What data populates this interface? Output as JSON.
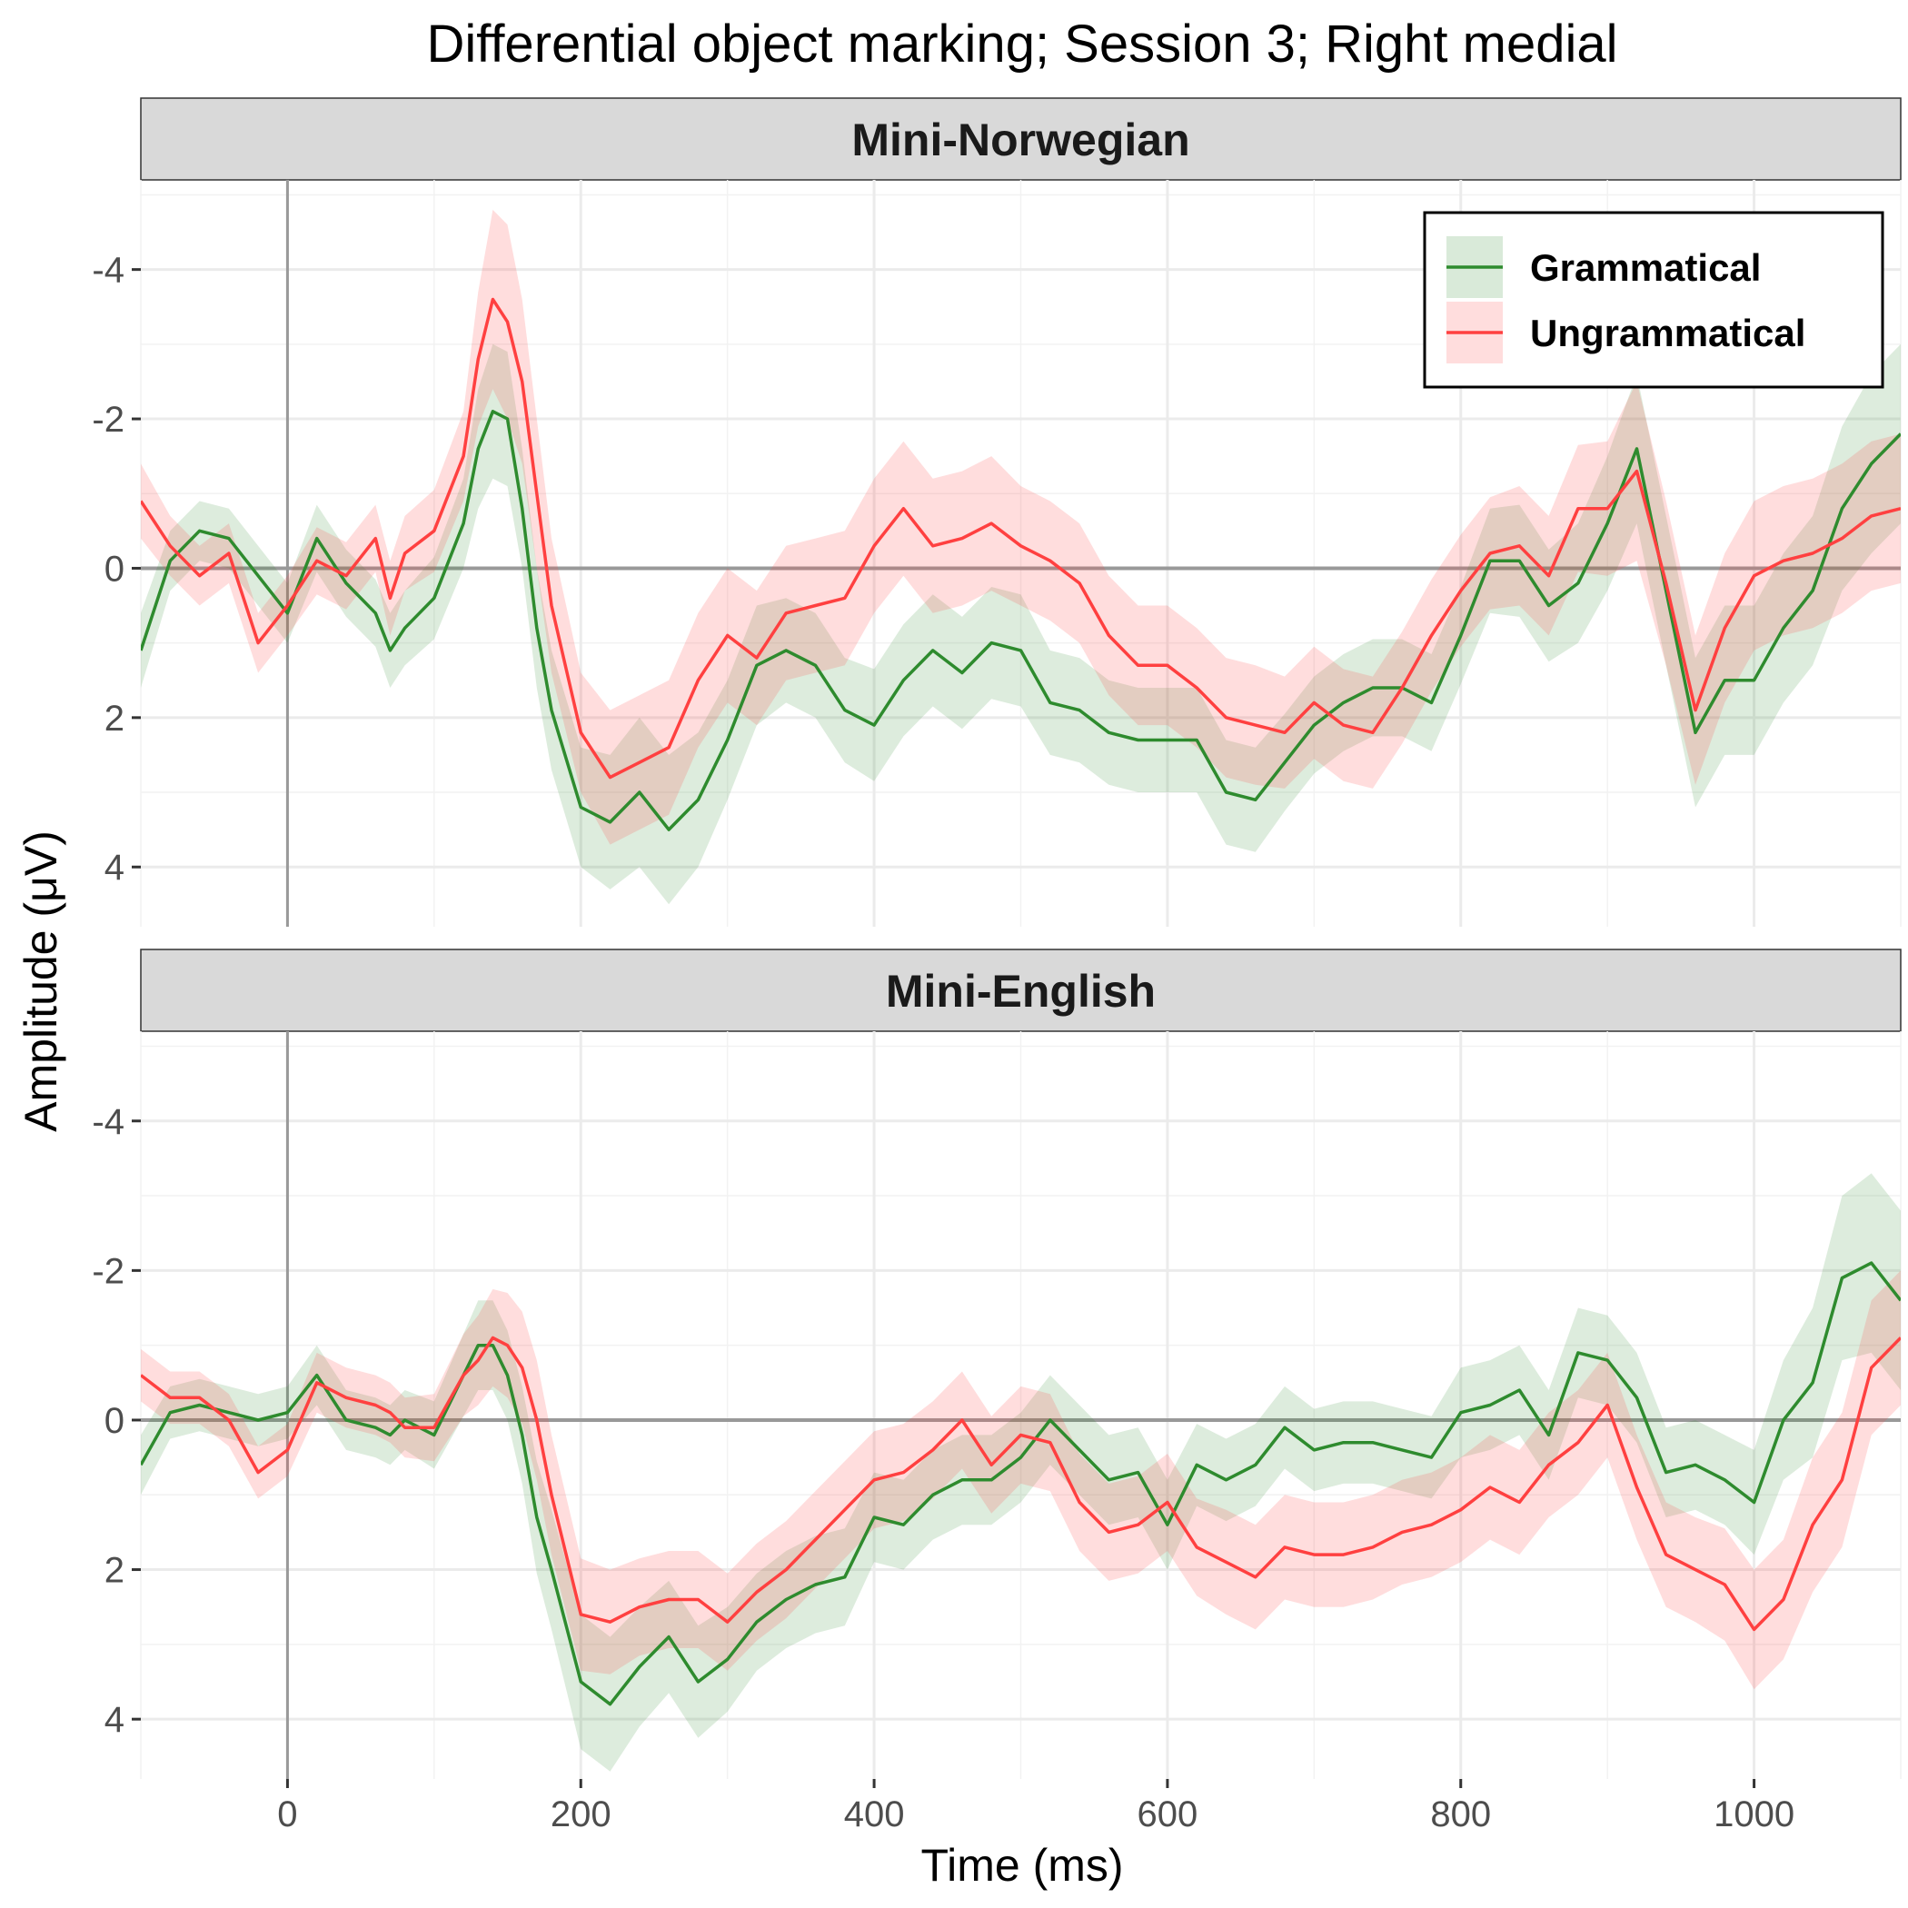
{
  "chart_data": {
    "type": "line",
    "title": "Differential object marking; Session 3; Right medial",
    "xlabel": "Time (ms)",
    "ylabel": "Amplitude (μV)",
    "y_reversed": true,
    "xlim": [
      -100,
      1100
    ],
    "ylim": [
      -5.2,
      4.8
    ],
    "x_ticks": [
      0,
      200,
      400,
      600,
      800,
      1000
    ],
    "y_ticks": [
      -4,
      -2,
      0,
      2,
      4
    ],
    "y_tick_labels": [
      "-4",
      "-2",
      "0",
      "2",
      "4"
    ],
    "grid": true,
    "ribbons": "confidence band around each series",
    "legend": {
      "position": "top-right",
      "entries": [
        "Grammatical",
        "Ungrammatical"
      ]
    },
    "colors": {
      "Grammatical": "#2e8b2e",
      "Ungrammatical": "#ff4040"
    },
    "panels": [
      {
        "label": "Mini-Norwegian",
        "series": [
          {
            "name": "Grammatical",
            "x": [
              -100,
              -80,
              -60,
              -40,
              -20,
              0,
              20,
              40,
              60,
              70,
              80,
              100,
              120,
              130,
              140,
              150,
              160,
              170,
              180,
              200,
              220,
              240,
              260,
              280,
              300,
              320,
              340,
              360,
              380,
              400,
              420,
              440,
              460,
              480,
              500,
              520,
              540,
              560,
              580,
              600,
              620,
              640,
              660,
              680,
              700,
              720,
              740,
              760,
              780,
              800,
              820,
              840,
              860,
              880,
              900,
              920,
              940,
              960,
              980,
              1000,
              1020,
              1040,
              1060,
              1080,
              1100
            ],
            "y": [
              1.1,
              -0.1,
              -0.5,
              -0.4,
              0.1,
              0.6,
              -0.4,
              0.2,
              0.6,
              1.1,
              0.8,
              0.4,
              -0.6,
              -1.6,
              -2.1,
              -2.0,
              -0.8,
              0.8,
              1.9,
              3.2,
              3.4,
              3.0,
              3.5,
              3.1,
              2.3,
              1.3,
              1.1,
              1.3,
              1.9,
              2.1,
              1.5,
              1.1,
              1.4,
              1.0,
              1.1,
              1.8,
              1.9,
              2.2,
              2.3,
              2.3,
              2.3,
              3.0,
              3.1,
              2.6,
              2.1,
              1.8,
              1.6,
              1.6,
              1.8,
              0.9,
              -0.1,
              -0.1,
              0.5,
              0.2,
              -0.6,
              -1.6,
              0.3,
              2.2,
              1.5,
              1.5,
              0.8,
              0.3,
              -0.8,
              -1.4,
              -1.8
            ],
            "band_halfwidth": [
              0.5,
              0.4,
              0.4,
              0.4,
              0.4,
              0.4,
              0.45,
              0.45,
              0.45,
              0.5,
              0.5,
              0.55,
              0.6,
              0.8,
              0.9,
              0.9,
              0.8,
              0.8,
              0.8,
              0.8,
              0.9,
              1.0,
              1.0,
              0.9,
              0.8,
              0.8,
              0.7,
              0.7,
              0.7,
              0.75,
              0.75,
              0.75,
              0.75,
              0.75,
              0.75,
              0.7,
              0.7,
              0.7,
              0.7,
              0.7,
              0.7,
              0.7,
              0.7,
              0.65,
              0.65,
              0.65,
              0.65,
              0.65,
              0.65,
              0.65,
              0.7,
              0.75,
              0.75,
              0.8,
              0.9,
              1.0,
              1.0,
              1.0,
              1.0,
              1.0,
              1.0,
              1.0,
              1.1,
              1.2,
              1.2
            ]
          },
          {
            "name": "Ungrammatical",
            "x": [
              -100,
              -80,
              -60,
              -40,
              -20,
              0,
              20,
              40,
              60,
              70,
              80,
              100,
              120,
              130,
              140,
              150,
              160,
              170,
              180,
              200,
              220,
              240,
              260,
              280,
              300,
              320,
              340,
              360,
              380,
              400,
              420,
              440,
              460,
              480,
              500,
              520,
              540,
              560,
              580,
              600,
              620,
              640,
              660,
              680,
              700,
              720,
              740,
              760,
              780,
              800,
              820,
              840,
              860,
              880,
              900,
              920,
              940,
              960,
              980,
              1000,
              1020,
              1040,
              1060,
              1080,
              1100
            ],
            "y": [
              -0.9,
              -0.3,
              0.1,
              -0.2,
              1.0,
              0.5,
              -0.1,
              0.1,
              -0.4,
              0.4,
              -0.2,
              -0.5,
              -1.5,
              -2.8,
              -3.6,
              -3.3,
              -2.5,
              -1.0,
              0.5,
              2.2,
              2.8,
              2.6,
              2.4,
              1.5,
              0.9,
              1.2,
              0.6,
              0.5,
              0.4,
              -0.3,
              -0.8,
              -0.3,
              -0.4,
              -0.6,
              -0.3,
              -0.1,
              0.2,
              0.9,
              1.3,
              1.3,
              1.6,
              2.0,
              2.1,
              2.2,
              1.8,
              2.1,
              2.2,
              1.6,
              0.9,
              0.3,
              -0.2,
              -0.3,
              0.1,
              -0.8,
              -0.8,
              -1.3,
              0.2,
              1.9,
              0.8,
              0.1,
              -0.1,
              -0.2,
              -0.4,
              -0.7,
              -0.8
            ],
            "band_halfwidth": [
              0.5,
              0.4,
              0.4,
              0.4,
              0.4,
              0.4,
              0.45,
              0.45,
              0.45,
              0.5,
              0.5,
              0.55,
              0.6,
              0.9,
              1.2,
              1.3,
              1.1,
              1.0,
              0.9,
              0.8,
              0.9,
              0.9,
              0.9,
              0.9,
              0.9,
              0.9,
              0.9,
              0.9,
              0.9,
              0.9,
              0.9,
              0.9,
              0.9,
              0.9,
              0.8,
              0.8,
              0.8,
              0.8,
              0.8,
              0.8,
              0.8,
              0.8,
              0.8,
              0.75,
              0.75,
              0.75,
              0.75,
              0.75,
              0.75,
              0.75,
              0.75,
              0.8,
              0.8,
              0.85,
              0.9,
              1.2,
              1.1,
              1.0,
              1.0,
              1.0,
              1.0,
              1.0,
              1.0,
              1.0,
              1.0
            ]
          }
        ]
      },
      {
        "label": "Mini-English",
        "series": [
          {
            "name": "Grammatical",
            "x": [
              -100,
              -80,
              -60,
              -40,
              -20,
              0,
              20,
              40,
              60,
              70,
              80,
              100,
              120,
              130,
              140,
              150,
              160,
              170,
              180,
              200,
              220,
              240,
              260,
              280,
              300,
              320,
              340,
              360,
              380,
              400,
              420,
              440,
              460,
              480,
              500,
              520,
              540,
              560,
              580,
              600,
              620,
              640,
              660,
              680,
              700,
              720,
              740,
              760,
              780,
              800,
              820,
              840,
              860,
              880,
              900,
              920,
              940,
              960,
              980,
              1000,
              1020,
              1040,
              1060,
              1080,
              1100
            ],
            "y": [
              0.6,
              -0.1,
              -0.2,
              -0.1,
              0.0,
              -0.1,
              -0.6,
              0.0,
              0.1,
              0.2,
              0.0,
              0.2,
              -0.6,
              -1.0,
              -1.0,
              -0.6,
              0.2,
              1.3,
              2.0,
              3.5,
              3.8,
              3.3,
              2.9,
              3.5,
              3.2,
              2.7,
              2.4,
              2.2,
              2.1,
              1.3,
              1.4,
              1.0,
              0.8,
              0.8,
              0.5,
              0.0,
              0.4,
              0.8,
              0.7,
              1.4,
              0.6,
              0.8,
              0.6,
              0.1,
              0.4,
              0.3,
              0.3,
              0.4,
              0.5,
              -0.1,
              -0.2,
              -0.4,
              0.2,
              -0.9,
              -0.8,
              -0.3,
              0.7,
              0.6,
              0.8,
              1.1,
              0.0,
              -0.5,
              -1.9,
              -2.1,
              -1.6
            ],
            "band_halfwidth": [
              0.4,
              0.35,
              0.35,
              0.35,
              0.35,
              0.35,
              0.4,
              0.4,
              0.4,
              0.4,
              0.4,
              0.45,
              0.55,
              0.6,
              0.6,
              0.6,
              0.65,
              0.75,
              0.8,
              0.9,
              0.9,
              0.8,
              0.75,
              0.75,
              0.7,
              0.65,
              0.65,
              0.65,
              0.65,
              0.6,
              0.6,
              0.6,
              0.6,
              0.6,
              0.6,
              0.6,
              0.6,
              0.6,
              0.6,
              0.6,
              0.55,
              0.55,
              0.55,
              0.55,
              0.55,
              0.55,
              0.55,
              0.55,
              0.55,
              0.6,
              0.6,
              0.6,
              0.6,
              0.6,
              0.6,
              0.6,
              0.6,
              0.6,
              0.6,
              0.7,
              0.8,
              1.0,
              1.1,
              1.2,
              1.2
            ]
          },
          {
            "name": "Ungrammatical",
            "x": [
              -100,
              -80,
              -60,
              -40,
              -20,
              0,
              20,
              40,
              60,
              70,
              80,
              100,
              120,
              130,
              140,
              150,
              160,
              170,
              180,
              200,
              220,
              240,
              260,
              280,
              300,
              320,
              340,
              360,
              380,
              400,
              420,
              440,
              460,
              480,
              500,
              520,
              540,
              560,
              580,
              600,
              620,
              640,
              660,
              680,
              700,
              720,
              740,
              760,
              780,
              800,
              820,
              840,
              860,
              880,
              900,
              920,
              940,
              960,
              980,
              1000,
              1020,
              1040,
              1060,
              1080,
              1100
            ],
            "y": [
              -0.6,
              -0.3,
              -0.3,
              0.0,
              0.7,
              0.4,
              -0.5,
              -0.3,
              -0.2,
              -0.1,
              0.1,
              0.1,
              -0.6,
              -0.8,
              -1.1,
              -1.0,
              -0.7,
              0.0,
              1.0,
              2.6,
              2.7,
              2.5,
              2.4,
              2.4,
              2.7,
              2.3,
              2.0,
              1.6,
              1.2,
              0.8,
              0.7,
              0.4,
              0.0,
              0.6,
              0.2,
              0.3,
              1.1,
              1.5,
              1.4,
              1.1,
              1.7,
              1.9,
              2.1,
              1.7,
              1.8,
              1.8,
              1.7,
              1.5,
              1.4,
              1.2,
              0.9,
              1.1,
              0.6,
              0.3,
              -0.2,
              0.9,
              1.8,
              2.0,
              2.2,
              2.8,
              2.4,
              1.4,
              0.8,
              -0.7,
              -1.1
            ],
            "band_halfwidth": [
              0.35,
              0.35,
              0.35,
              0.35,
              0.35,
              0.35,
              0.4,
              0.4,
              0.4,
              0.4,
              0.4,
              0.45,
              0.55,
              0.6,
              0.65,
              0.7,
              0.75,
              0.8,
              0.8,
              0.75,
              0.7,
              0.65,
              0.65,
              0.65,
              0.65,
              0.65,
              0.65,
              0.65,
              0.65,
              0.65,
              0.65,
              0.65,
              0.65,
              0.65,
              0.65,
              0.65,
              0.65,
              0.65,
              0.65,
              0.65,
              0.65,
              0.7,
              0.7,
              0.7,
              0.7,
              0.7,
              0.7,
              0.7,
              0.7,
              0.7,
              0.7,
              0.7,
              0.7,
              0.7,
              0.7,
              0.7,
              0.7,
              0.7,
              0.75,
              0.8,
              0.8,
              0.9,
              0.9,
              0.9,
              0.9
            ]
          }
        ]
      }
    ]
  }
}
